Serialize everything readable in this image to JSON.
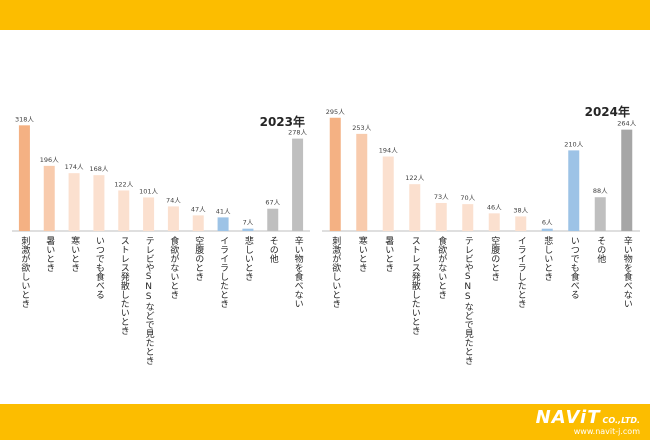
{
  "chart_data": [
    {
      "type": "bar",
      "title": "2023年",
      "categories": [
        "刺激が欲しいとき",
        "暑いとき",
        "寒いとき",
        "いつでも食べる",
        "ストレス発散したいとき",
        "テレビやSNSなどで見たとき",
        "食欲がないとき",
        "空腹のとき",
        "イライラしたとき",
        "悲しいとき",
        "その他",
        "辛い物を食べない"
      ],
      "values": [
        318,
        196,
        174,
        168,
        122,
        101,
        74,
        47,
        41,
        7,
        67,
        278
      ],
      "value_labels": [
        "318人",
        "196人",
        "174人",
        "168人",
        "122人",
        "101人",
        "74人",
        "47人",
        "41人",
        "7人",
        "67人",
        "278人"
      ],
      "colors": [
        "#f4b183",
        "#f8cbad",
        "#fbe0cf",
        "#fbe0cf",
        "#fbe0cf",
        "#fbe0cf",
        "#fbe0cf",
        "#fbe0cf",
        "#9dc3e6",
        "#9dc3e6",
        "#bfbfbf",
        "#bfbfbf"
      ],
      "ylim": [
        0,
        340
      ],
      "grid": false,
      "legend": "none"
    },
    {
      "type": "bar",
      "title": "2024年",
      "categories": [
        "刺激が欲しいとき",
        "寒いとき",
        "暑いとき",
        "ストレス発散したいとき",
        "食欲がないとき",
        "テレビやSNSなどで見たとき",
        "空腹のとき",
        "イライラしたとき",
        "悲しいとき",
        "いつでも食べる",
        "その他",
        "辛い物を食べない"
      ],
      "values": [
        295,
        253,
        194,
        122,
        73,
        70,
        46,
        38,
        6,
        210,
        88,
        264
      ],
      "value_labels": [
        "295人",
        "253人",
        "194人",
        "122人",
        "73人",
        "70人",
        "46人",
        "38人",
        "6人",
        "210人",
        "88人",
        "264人"
      ],
      "colors": [
        "#f4b183",
        "#f8cbad",
        "#fbe0cf",
        "#fbe0cf",
        "#fbe0cf",
        "#fbe0cf",
        "#fbe0cf",
        "#fbe0cf",
        "#9dc3e6",
        "#9dc3e6",
        "#bfbfbf",
        "#a6a6a6"
      ],
      "ylim": [
        0,
        310
      ],
      "grid": false,
      "legend": "none"
    }
  ],
  "footer": {
    "brand": "NAViT",
    "suffix": "CO.,LTD.",
    "url": "www.navit-j.com"
  },
  "colors": {
    "band": "#fcbd00",
    "axis": "#bfbfbf",
    "text": "#404040"
  }
}
